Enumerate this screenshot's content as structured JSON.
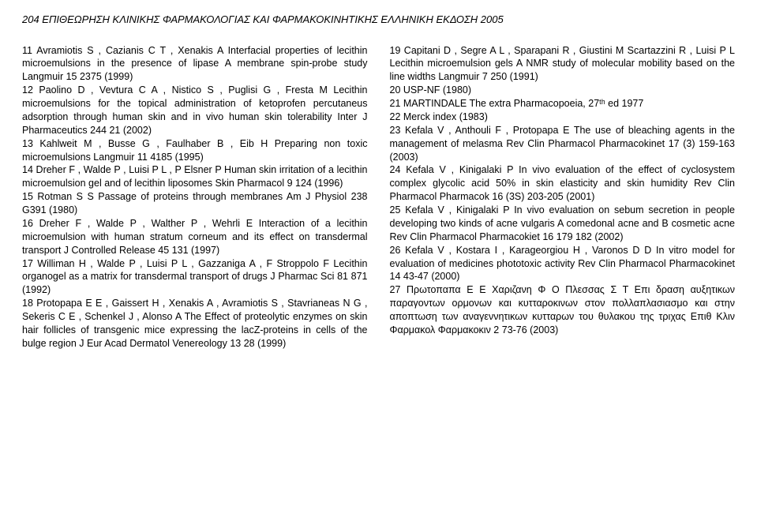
{
  "header": "204    ΕΠΙΘΕΩΡΗΣΗ ΚΛΙΝΙΚΗΣ ΦΑΡΜΑΚΟΛΟΓΙΑΣ ΚΑΙ ΦΑΡΜΑΚΟΚΙΝΗΤΙΚΗΣ ΕΛΛΗΝΙΚΗ ΕΚΔΟΣΗ   2005",
  "left": [
    "11 Avramiotis S , Cazianis C T , Xenakis A  Interfacial properties of lecithin microemulsions in the presence of lipase A membrane spin-probe study Langmuir 15 2375 (1999)",
    "12 Paolino D , Vevtura C A , Nistico S , Puglisi G , Fresta M  Lecithin microemulsions for the topical administration of ketoprofen percutaneus adsorption through human skin and in vivo human skin tolerability Inter J Pharmaceutics 244 21 (2002)",
    "13 Kahlweit M , Busse G , Faulhaber B , Eib H  Preparing non toxic microemulsions Langmuir 11 4185 (1995)",
    "14 Dreher F , Walde P , Luisi P L , P Elsner P  Human skin irritation of a lecithin microemulsion gel and of lecithin liposomes Skin Pharmacol 9 124 (1996)",
    "15 Rotman S S  Passage of proteins through membranes Am J Physiol 238 G391 (1980)",
    "16 Dreher F , Walde P , Walther P , Wehrli E  Interaction of a lecithin microemulsion with human stratum corneum and its effect on transdermal transport J Controlled Release 45 131 (1997)",
    "17 Williman H , Walde P , Luisi P L , Gazzaniga A , F Stroppolo F  Lecithin organogel as a matrix for transdermal transport of drugs J Pharmac Sci 81 871 (1992)",
    "18 Protopapa E E , Gaissert H , Xenakis A , Avramiotis S , Stavrianeas N G , Sekeris C E , Schenkel J , Alonso A  The Effect of proteolytic enzymes on skin hair follicles of transgenic mice expressing the lacZ-proteins in cells of the bulge region J Eur Acad Dermatol Venereology 13 28 (1999)"
  ],
  "right": [
    "19 Capitani D , Segre A L , Sparapani R , Giustini M Scartazzini R , Luisi P L  Lecithin microemulsion gels A NMR study of molecular mobility based on the line widths Langmuir 7 250 (1991)",
    "20 USP-NF (1980)",
    "21 MARTINDALE The extra Pharmacopoeia, 27ᵗʰ ed 1977",
    "22 Merck index (1983)",
    "23 Kefala V , Anthouli F , Protopapa E  The use of bleaching agents in the management of melasma Rev Clin Pharmacol Pharmacokinet 17 (3) 159-163 (2003)",
    "24 Kefala V , Kinigalaki P  In vivo evaluation of the effect of cyclosystem complex glycolic acid 50% in skin elasticity and skin humidity Rev Clin Pharmacol Pharmacok 16 (3S) 203-205 (2001)",
    "25 Kefala V , Kinigalaki P  In vivo evaluation on sebum secretion in people developing two kinds of acne vulgaris A comedonal acne and B cosmetic acne Rev Clin Pharmacol Pharmacokiet 16 179 182 (2002)",
    "26 Kefala V , Kostara I , Karageorgiou H , Varonos D D  In vitro model for evaluation of medicines phototoxic activity Rev Clin Pharmacol Pharmacokinet 14 43-47 (2000)",
    "27 Πρωτοπαπα Ε Ε  Χαριζανη Φ Ο  Πλεσσας Σ Τ  Επι δραση αυξητικων παραγοντων ορμονων και κυτταροκινων στον πολλαπλασιασμο και στην αποπτωση των αναγεννητικων κυτταρων του θυλακου της τριχας Επιθ Κλιν Φαρμακολ Φαρμακοκιν 2 73-76 (2003)"
  ]
}
